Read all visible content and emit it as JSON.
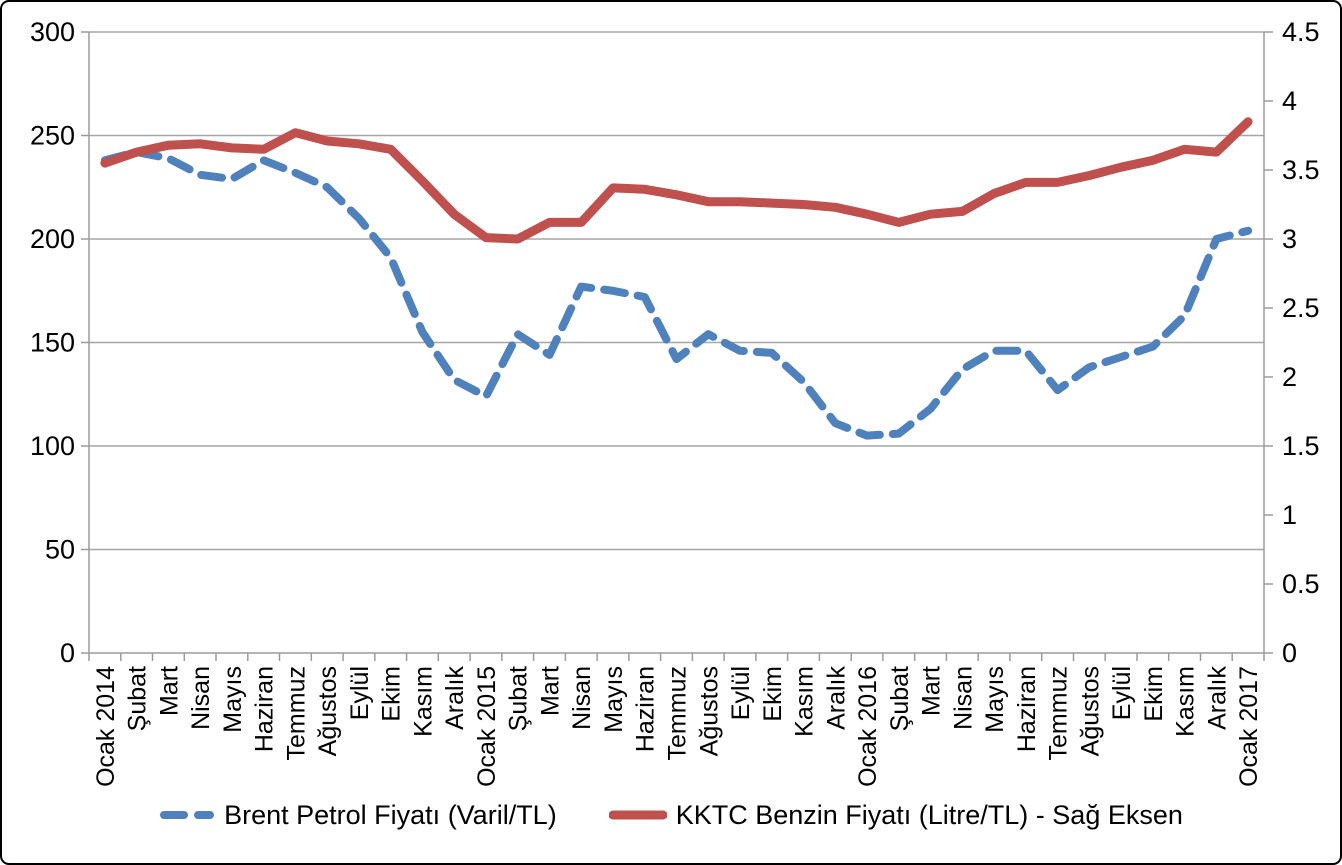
{
  "chart_data": {
    "type": "line",
    "title": "",
    "categories": [
      "Ocak 2014",
      "Şubat",
      "Mart",
      "Nisan",
      "Mayıs",
      "Haziran",
      "Temmuz",
      "Ağustos",
      "Eylül",
      "Ekim",
      "Kasım",
      "Aralık",
      "Ocak 2015",
      "Şubat",
      "Mart",
      "Nisan",
      "Mayıs",
      "Haziran",
      "Temmuz",
      "Ağustos",
      "Eylül",
      "Ekim",
      "Kasım",
      "Aralık",
      "Ocak 2016",
      "Şubat",
      "Mart",
      "Nisan",
      "Mayıs",
      "Haziran",
      "Temmuz",
      "Ağustos",
      "Eylül",
      "Ekim",
      "Kasım",
      "Aralık",
      "Ocak 2017"
    ],
    "series": [
      {
        "name": "Brent Petrol Fiyatı (Varil/TL)",
        "axis": "left",
        "color": "#4F81BD",
        "style": "dashed",
        "values": [
          238,
          242,
          239,
          231,
          229,
          238,
          232,
          225,
          210,
          191,
          155,
          132,
          124,
          154,
          144,
          177,
          175,
          172,
          142,
          154,
          146,
          145,
          131,
          111,
          105,
          106,
          118,
          137,
          146,
          146,
          127,
          138,
          143,
          148,
          163,
          200,
          204
        ]
      },
      {
        "name": "KKTC Benzin Fiyatı (Litre/TL) - Sağ Eksen",
        "axis": "right",
        "color": "#C0504D",
        "style": "solid",
        "values": [
          3.55,
          3.63,
          3.68,
          3.69,
          3.66,
          3.65,
          3.77,
          3.71,
          3.69,
          3.65,
          3.42,
          3.18,
          3.01,
          3.0,
          3.12,
          3.12,
          3.37,
          3.36,
          3.32,
          3.27,
          3.27,
          3.26,
          3.25,
          3.23,
          3.18,
          3.12,
          3.18,
          3.2,
          3.33,
          3.41,
          3.41,
          3.46,
          3.52,
          3.57,
          3.65,
          3.63,
          3.85
        ]
      }
    ],
    "left_axis": {
      "min": 0,
      "max": 300,
      "step": 50,
      "ticks": [
        "300",
        "250",
        "200",
        "150",
        "100",
        "50",
        "0"
      ]
    },
    "right_axis": {
      "min": 0,
      "max": 4.5,
      "step": 0.5,
      "ticks": [
        "4.5",
        "4",
        "3.5",
        "3",
        "2.5",
        "2",
        "1.5",
        "1",
        "0.5",
        "0"
      ]
    },
    "grid": true,
    "legend_position": "bottom",
    "colors": {
      "grid_line": "#A6A6A6",
      "axis_line": "#9B9B9B",
      "text": "#000000",
      "background": "#FFFFFF"
    }
  }
}
